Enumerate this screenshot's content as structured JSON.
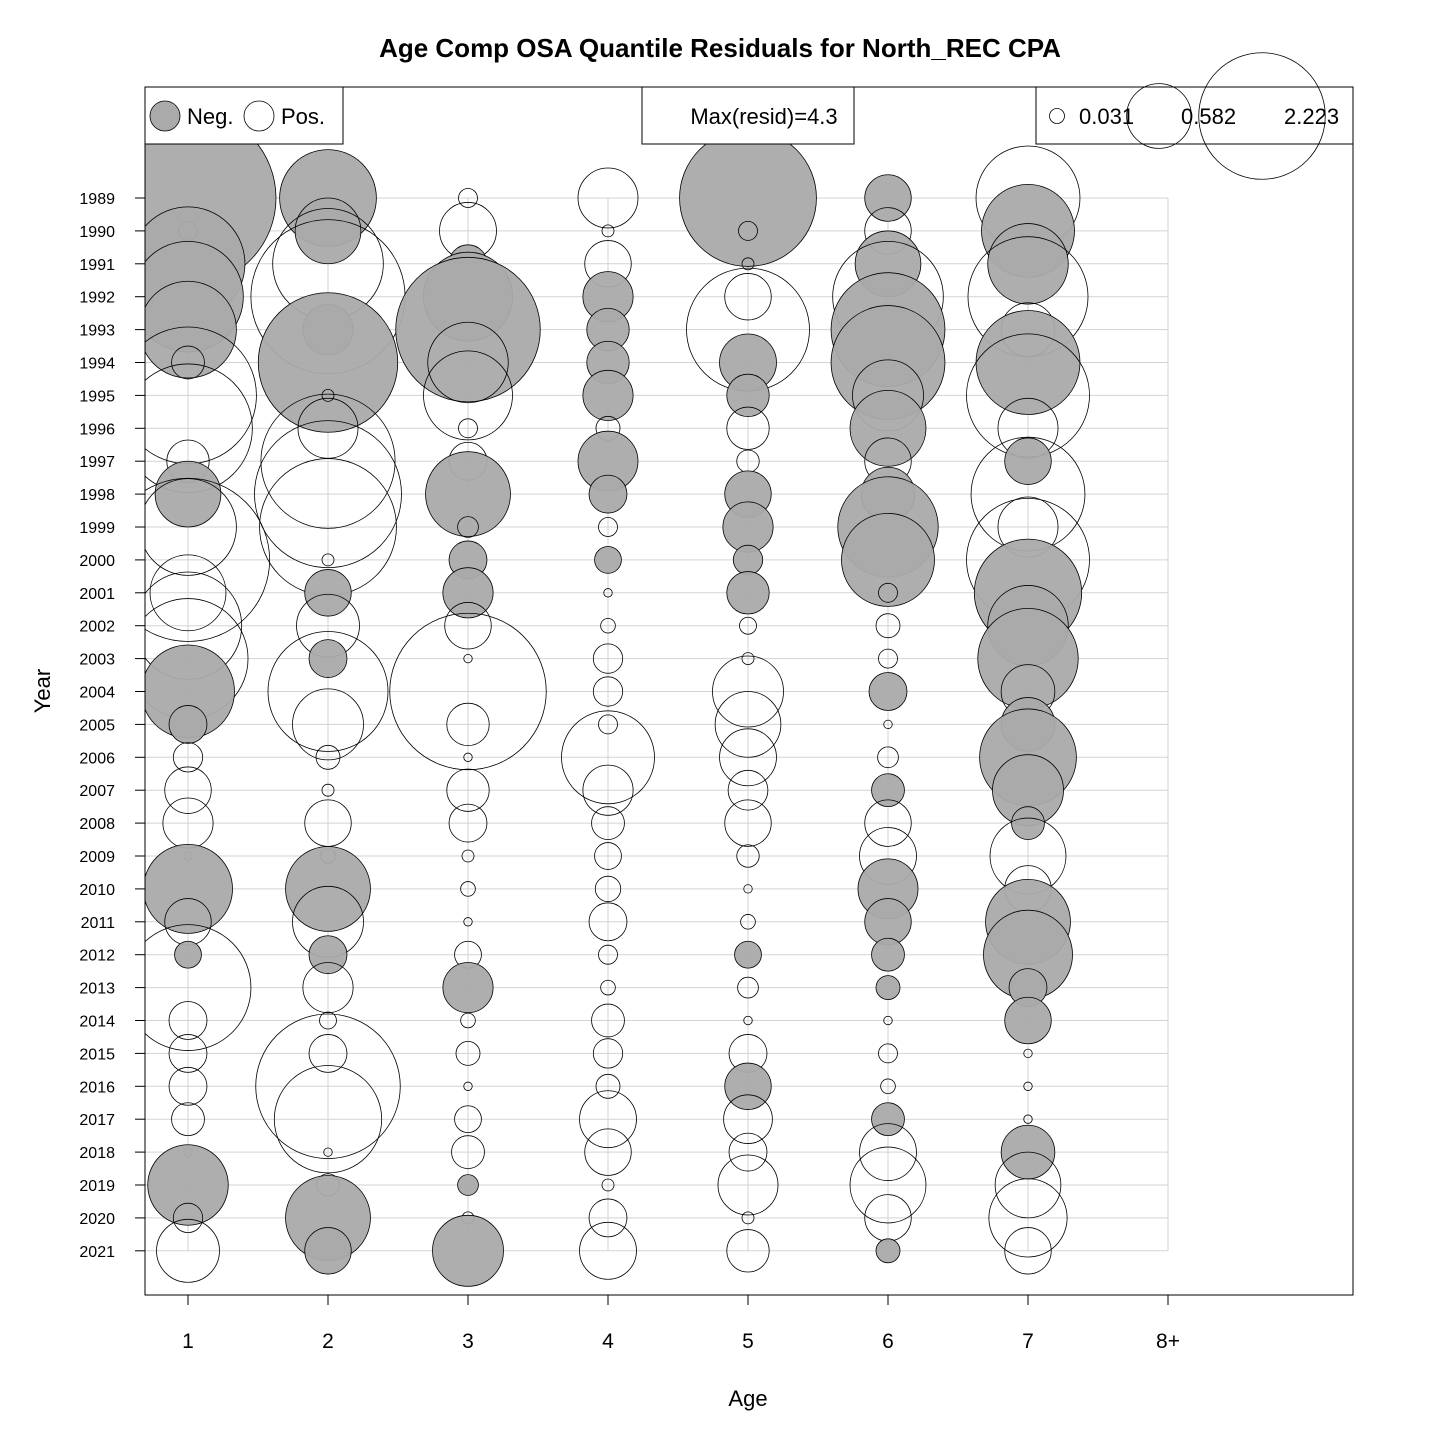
{
  "chart_data": {
    "type": "bubble",
    "title": "Age Comp OSA Quantile Residuals for North_REC CPA",
    "xlabel": "Age",
    "ylabel": "Year",
    "x_categories": [
      "1",
      "2",
      "3",
      "4",
      "5",
      "6",
      "7",
      "8+"
    ],
    "years": [
      1989,
      1990,
      1991,
      1992,
      1993,
      1994,
      1995,
      1996,
      1997,
      1998,
      1999,
      2000,
      2001,
      2002,
      2003,
      2004,
      2005,
      2006,
      2007,
      2008,
      2009,
      2010,
      2011,
      2012,
      2013,
      2014,
      2015,
      2016,
      2017,
      2018,
      2019,
      2020,
      2021
    ],
    "year_labels": [
      "1989",
      "1990",
      "1991",
      "1992",
      "1993",
      "1994",
      "1995",
      "1996",
      "1997",
      "1998",
      "1999",
      "2000",
      "2001",
      "2002",
      "2003",
      "2004",
      "2005",
      "2006",
      "2007",
      "2008",
      "2009",
      "2010",
      "2011",
      "2012",
      "2013",
      "2014",
      "2015",
      "2016",
      "2017",
      "2018",
      "2019",
      "2020",
      "2021"
    ],
    "max_resid_label": "Max(resid)=4.3",
    "sign_legend": {
      "neg": "Neg.",
      "pos": "Pos."
    },
    "size_legend": [
      "0.031",
      "0.582",
      "2.223"
    ],
    "size_legend_values": [
      0.031,
      0.582,
      2.223
    ],
    "colors": {
      "negative_fill": "#aaaaaa",
      "positive_fill": "#ffffff",
      "grid": "#d3d3d3",
      "stroke": "#000000"
    },
    "grid": true,
    "residuals": [
      [
        -4.3,
        -1.3,
        0.05,
        0.5,
        -2.6,
        -0.3,
        1.5,
        null
      ],
      [
        0.05,
        -0.6,
        0.45,
        0.02,
        0.05,
        0.3,
        -1.2,
        null
      ],
      [
        -1.8,
        1.7,
        -0.2,
        0.3,
        0.02,
        -0.6,
        -0.9,
        null
      ],
      [
        -1.7,
        3.3,
        -1.1,
        -0.35,
        0.3,
        1.7,
        2.0,
        null
      ],
      [
        -1.3,
        -0.35,
        -2.9,
        -0.25,
        2.1,
        -1.8,
        0.4,
        null
      ],
      [
        0.15,
        -2.7,
        0.9,
        -0.25,
        -0.45,
        -1.8,
        -1.5,
        null
      ],
      [
        2.6,
        0.02,
        1.1,
        -0.35,
        -0.25,
        0.7,
        2.1,
        null
      ],
      [
        2.3,
        0.5,
        0.05,
        0.08,
        0.25,
        -0.8,
        0.5,
        null
      ],
      [
        0.25,
        2.5,
        0.2,
        -0.5,
        0.07,
        0.3,
        -0.3,
        null
      ],
      [
        -0.6,
        3.0,
        -1.0,
        -0.2,
        -0.3,
        -0.4,
        1.8,
        null
      ],
      [
        1.3,
        2.6,
        0.06,
        0.05,
        -0.35,
        -1.4,
        0.5,
        null
      ],
      [
        3.7,
        0.02,
        -0.2,
        -0.1,
        -0.12,
        -1.2,
        2.1,
        null
      ],
      [
        0.8,
        -0.3,
        -0.35,
        0.01,
        -0.25,
        0.05,
        -1.6,
        null
      ],
      [
        1.6,
        0.55,
        0.3,
        0.03,
        0.04,
        0.08,
        -0.9,
        null
      ],
      [
        2.0,
        -0.2,
        0.01,
        0.12,
        0.02,
        0.05,
        -1.4,
        null
      ],
      [
        -1.2,
        2.0,
        3.4,
        0.12,
        0.7,
        -0.2,
        0.4,
        null
      ],
      [
        -0.2,
        0.7,
        0.25,
        0.05,
        0.6,
        0.01,
        -0.4,
        null
      ],
      [
        0.12,
        0.08,
        0.01,
        1.2,
        0.45,
        0.06,
        -1.3,
        null
      ],
      [
        0.3,
        0.02,
        0.25,
        0.35,
        0.22,
        -0.15,
        -0.7,
        null
      ],
      [
        0.35,
        0.3,
        0.2,
        0.15,
        0.3,
        0.3,
        -0.15,
        null
      ],
      [
        0.01,
        0.03,
        0.02,
        0.1,
        0.07,
        0.45,
        0.8,
        null
      ],
      [
        -1.1,
        -1.0,
        0.03,
        0.09,
        0.01,
        -0.5,
        0.3,
        null
      ],
      [
        0.3,
        0.7,
        0.01,
        0.2,
        0.03,
        -0.3,
        -1.0,
        null
      ],
      [
        -0.1,
        -0.2,
        0.1,
        0.05,
        -0.1,
        -0.15,
        -1.1,
        null
      ],
      [
        2.2,
        0.35,
        -0.35,
        0.03,
        0.06,
        -0.08,
        -0.2,
        null
      ],
      [
        0.2,
        0.04,
        0.03,
        0.15,
        0.01,
        0.01,
        -0.3,
        null
      ],
      [
        0.2,
        0.2,
        0.08,
        0.12,
        0.2,
        0.05,
        0.01,
        null
      ],
      [
        0.2,
        2.9,
        0.01,
        0.08,
        -0.3,
        0.03,
        0.01,
        null
      ],
      [
        0.15,
        1.6,
        0.1,
        0.45,
        0.33,
        -0.15,
        0.01,
        null
      ],
      [
        0.01,
        0.01,
        0.15,
        0.3,
        0.2,
        0.45,
        -0.4,
        null
      ],
      [
        -0.9,
        0.07,
        -0.06,
        0.02,
        0.5,
        0.8,
        0.6,
        null
      ],
      [
        0.12,
        -1.0,
        0.02,
        0.2,
        0.02,
        0.3,
        0.85,
        null
      ],
      [
        0.55,
        -0.3,
        -0.7,
        0.45,
        0.25,
        -0.08,
        0.3,
        null
      ]
    ]
  }
}
